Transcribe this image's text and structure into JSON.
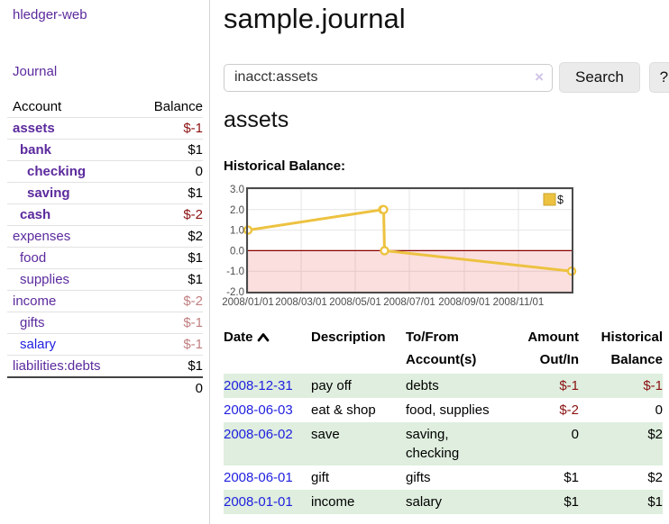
{
  "sidebar": {
    "brand": "hledger-web",
    "journal_link": "Journal",
    "accounts_table": {
      "headers": [
        "Account",
        "Balance"
      ],
      "rows": [
        {
          "name": "assets",
          "depth": 1,
          "bold": true,
          "balance": "$-1",
          "balance_style": "neg"
        },
        {
          "name": "bank",
          "depth": 2,
          "bold": true,
          "balance": "$1",
          "balance_style": "normal"
        },
        {
          "name": "checking",
          "depth": 3,
          "bold": true,
          "balance": "0",
          "balance_style": "normal"
        },
        {
          "name": "saving",
          "depth": 3,
          "bold": true,
          "balance": "$1",
          "balance_style": "normal"
        },
        {
          "name": "cash",
          "depth": 2,
          "bold": true,
          "balance": "$-2",
          "balance_style": "neg"
        },
        {
          "name": "expenses",
          "depth": 1,
          "bold": false,
          "balance": "$2",
          "balance_style": "normal"
        },
        {
          "name": "food",
          "depth": 2,
          "bold": false,
          "balance": "$1",
          "balance_style": "normal"
        },
        {
          "name": "supplies",
          "depth": 2,
          "bold": false,
          "balance": "$1",
          "balance_style": "normal"
        },
        {
          "name": "income",
          "depth": 1,
          "bold": false,
          "balance": "$-2",
          "balance_style": "muted-neg"
        },
        {
          "name": "gifts",
          "depth": 2,
          "bold": false,
          "balance": "$-1",
          "balance_style": "muted-neg"
        },
        {
          "name": "salary",
          "depth": 2,
          "bold": false,
          "balance": "$-1",
          "balance_style": "muted-neg",
          "link_variant": "blue"
        },
        {
          "name": "liabilities:debts",
          "depth": 1,
          "bold": false,
          "balance": "$1",
          "balance_style": "normal"
        }
      ],
      "total": "0"
    }
  },
  "main": {
    "title": "sample.journal",
    "search": {
      "value": "inacct:assets",
      "clear_icon": "×",
      "button": "Search",
      "help_button": "?"
    },
    "account_heading": "assets",
    "chart_heading": "Historical Balance:"
  },
  "chart_data": {
    "type": "line",
    "title": "Historical Balance",
    "series": [
      {
        "name": "$",
        "color": "#edc240",
        "points": [
          [
            "2008-01-01",
            1
          ],
          [
            "2008-06-01",
            2
          ],
          [
            "2008-06-02",
            2
          ],
          [
            "2008-06-03",
            0
          ],
          [
            "2008-12-31",
            -1
          ]
        ]
      }
    ],
    "x_range": [
      "2008-01-01",
      "2008-12-31"
    ],
    "x_ticks": [
      "2008/01/01",
      "2008/03/01",
      "2008/05/01",
      "2008/07/01",
      "2008/09/01",
      "2008/11/01"
    ],
    "y_ticks": [
      3.0,
      2.0,
      1.0,
      0.0,
      -1.0,
      -2.0
    ],
    "y_tick_labels": [
      "3.0",
      "2.0",
      "1.0",
      "0.0",
      "-1.0",
      "-2.0"
    ],
    "ylim": [
      -2,
      3
    ],
    "legend": "$",
    "legend_position": "top-right",
    "grid": true,
    "negative_region_fill": "#f6d9d9",
    "zero_line_color": "#8b0000"
  },
  "transactions": {
    "headers": {
      "date_label": "Date",
      "description_label": "Description",
      "tofrom_lines": [
        "To/From",
        "Account(s)"
      ],
      "amount_lines": [
        "Amount",
        "Out/In"
      ],
      "balance_lines": [
        "Historical",
        "Balance"
      ]
    },
    "rows": [
      {
        "date": "2008-12-31",
        "description": "pay off",
        "accounts": "debts",
        "amount": "$-1",
        "amount_negative": true,
        "balance": "$-1",
        "balance_negative": true
      },
      {
        "date": "2008-06-03",
        "description": "eat & shop",
        "accounts": "food, supplies",
        "amount": "$-2",
        "amount_negative": true,
        "balance": "0",
        "balance_negative": false
      },
      {
        "date": "2008-06-02",
        "description": "save",
        "accounts": "saving, checking",
        "amount": "0",
        "amount_negative": false,
        "balance": "$2",
        "balance_negative": false
      },
      {
        "date": "2008-06-01",
        "description": "gift",
        "accounts": "gifts",
        "amount": "$1",
        "amount_negative": false,
        "balance": "$2",
        "balance_negative": false
      },
      {
        "date": "2008-01-01",
        "description": "income",
        "accounts": "salary",
        "amount": "$1",
        "amount_negative": false,
        "balance": "$1",
        "balance_negative": false
      }
    ]
  }
}
